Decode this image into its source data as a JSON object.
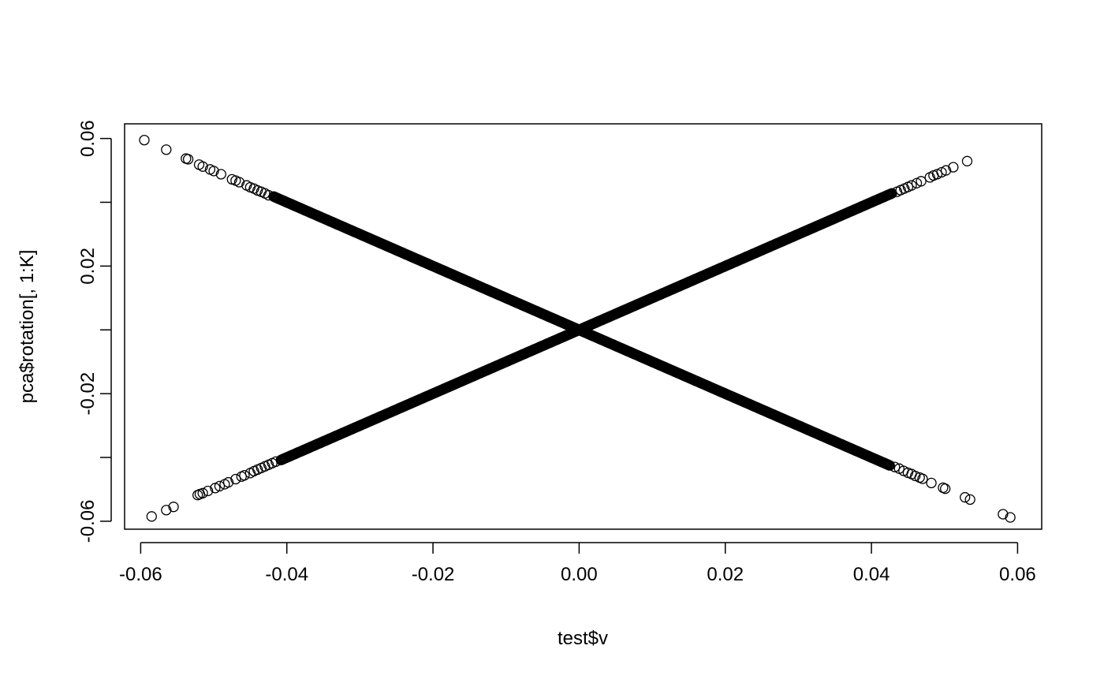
{
  "chart_data": {
    "type": "scatter",
    "title": "",
    "xlabel": "test$v",
    "ylabel": "pca$rotation[, 1:K]",
    "xlim": [
      -0.0622,
      0.0633
    ],
    "ylim": [
      -0.0625,
      0.0646
    ],
    "x_ticks": [
      -0.06,
      -0.04,
      -0.02,
      0.0,
      0.02,
      0.04,
      0.06
    ],
    "x_tick_labels": [
      "-0.06",
      "-0.04",
      "-0.02",
      "0.00",
      "0.02",
      "0.04",
      "0.06"
    ],
    "y_ticks": [
      -0.06,
      -0.04,
      -0.02,
      0.0,
      0.02,
      0.04,
      0.06
    ],
    "y_tick_labels": [
      "-0.06",
      "",
      "-0.02",
      "",
      "0.02",
      "",
      "0.06"
    ],
    "grid": false,
    "marker": "open-circle",
    "series": [
      {
        "dense_segment": [
          -0.0408,
          0.0428
        ],
        "points": [
          [
            -0.0522,
            -0.0518
          ],
          [
            -0.0519,
            -0.0515
          ],
          [
            -0.0515,
            -0.0512
          ],
          [
            -0.0508,
            -0.0505
          ],
          [
            -0.0498,
            -0.0496
          ],
          [
            -0.0492,
            -0.049
          ],
          [
            -0.0485,
            -0.0484
          ],
          [
            -0.048,
            -0.0478
          ],
          [
            -0.047,
            -0.0468
          ],
          [
            -0.0462,
            -0.046
          ],
          [
            -0.0458,
            -0.0456
          ],
          [
            -0.045,
            -0.0449
          ],
          [
            -0.0445,
            -0.0443
          ],
          [
            -0.044,
            -0.0438
          ],
          [
            -0.0435,
            -0.0433
          ],
          [
            -0.043,
            -0.0428
          ],
          [
            -0.0425,
            -0.0423
          ],
          [
            -0.042,
            -0.0418
          ],
          [
            -0.0415,
            -0.0413
          ],
          [
            0.0435,
            0.0433
          ],
          [
            0.044,
            0.0438
          ],
          [
            0.0445,
            0.0443
          ],
          [
            0.045,
            0.0448
          ],
          [
            0.0455,
            0.0453
          ],
          [
            0.0462,
            0.046
          ],
          [
            0.0468,
            0.0466
          ],
          [
            0.048,
            0.0478
          ],
          [
            0.0485,
            0.0484
          ],
          [
            0.049,
            0.0488
          ],
          [
            0.0496,
            0.0494
          ],
          [
            0.0502,
            0.05
          ],
          [
            0.0512,
            0.051
          ],
          [
            0.0531,
            0.0529
          ],
          [
            -0.0585,
            -0.0585
          ],
          [
            -0.0565,
            -0.0565
          ],
          [
            -0.0555,
            -0.0555
          ]
        ]
      },
      {
        "dense_segment": [
          -0.0418,
          0.0425
        ],
        "points": [
          [
            -0.0595,
            0.0595
          ],
          [
            -0.0565,
            0.0565
          ],
          [
            -0.0538,
            0.0537
          ],
          [
            -0.0535,
            0.0535
          ],
          [
            -0.052,
            0.0518
          ],
          [
            -0.0515,
            0.0512
          ],
          [
            -0.0505,
            0.0503
          ],
          [
            -0.05,
            0.0498
          ],
          [
            -0.049,
            0.0488
          ],
          [
            -0.0475,
            0.0472
          ],
          [
            -0.047,
            0.0468
          ],
          [
            -0.0465,
            0.0463
          ],
          [
            -0.0455,
            0.0453
          ],
          [
            -0.045,
            0.0447
          ],
          [
            -0.0445,
            0.0443
          ],
          [
            -0.044,
            0.0437
          ],
          [
            -0.0435,
            0.0433
          ],
          [
            -0.043,
            0.0428
          ],
          [
            -0.0425,
            0.0422
          ],
          [
            0.0432,
            -0.043
          ],
          [
            0.0438,
            -0.0435
          ],
          [
            0.0444,
            -0.0442
          ],
          [
            0.045,
            -0.0448
          ],
          [
            0.0455,
            -0.0452
          ],
          [
            0.046,
            -0.0458
          ],
          [
            0.0466,
            -0.0463
          ],
          [
            0.047,
            -0.0467
          ],
          [
            0.0482,
            -0.048
          ],
          [
            0.0498,
            -0.0495
          ],
          [
            0.0501,
            -0.0498
          ],
          [
            0.0528,
            -0.0525
          ],
          [
            0.0535,
            -0.0532
          ],
          [
            0.058,
            -0.0578
          ],
          [
            0.059,
            -0.0588
          ]
        ]
      }
    ]
  }
}
